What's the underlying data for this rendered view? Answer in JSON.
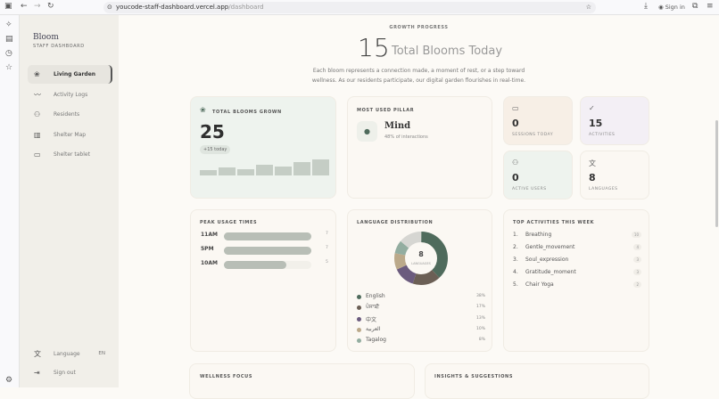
{
  "browser": {
    "url_host": "youcode-staff-dashboard.vercel.app",
    "url_path": "/dashboard",
    "sign_in": "Sign in"
  },
  "sidebar": {
    "brand": "Bloom",
    "subtitle": "STAFF DASHBOARD",
    "items": [
      {
        "label": "Living Garden",
        "icon": "flower-icon"
      },
      {
        "label": "Activity Logs",
        "icon": "activity-icon"
      },
      {
        "label": "Residents",
        "icon": "users-icon"
      },
      {
        "label": "Shelter Map",
        "icon": "map-icon"
      },
      {
        "label": "Shelter tablet",
        "icon": "tablet-icon"
      }
    ],
    "language_label": "Language",
    "language_value": "EN",
    "sign_out": "Sign out"
  },
  "hero": {
    "eyebrow": "GROWTH PROGRESS",
    "count": "15",
    "title": "Total Blooms Today",
    "description_1": "Each bloom represents a connection made, a moment of rest, or a step toward",
    "description_2": "wellness. As our residents participate, our digital garden flourishes in real-time."
  },
  "total_blooms": {
    "label": "TOTAL BLOOMS GROWN",
    "value": "25",
    "delta": "+15 today",
    "bars": [
      2,
      3,
      2.5,
      4,
      3.5,
      5,
      6
    ]
  },
  "pillar": {
    "label": "MOST USED PILLAR",
    "name": "Mind",
    "sub": "48% of interactions"
  },
  "stats": [
    {
      "value": "0",
      "label": "SESSIONS TODAY",
      "color": "#f7efe6"
    },
    {
      "value": "15",
      "label": "ACTIVITIES",
      "color": "#f3eff5"
    },
    {
      "value": "0",
      "label": "ACTIVE USERS",
      "color": "#eef3ee"
    },
    {
      "value": "8",
      "label": "LANGUAGES",
      "color": "#fbf8f3"
    }
  ],
  "peak": {
    "label": "PEAK USAGE TIMES",
    "max": 7,
    "rows": [
      {
        "time": "11AM",
        "value": 7
      },
      {
        "time": "5PM",
        "value": 7
      },
      {
        "time": "10AM",
        "value": 5
      }
    ]
  },
  "languages": {
    "label": "LANGUAGE DISTRIBUTION",
    "center_value": "8",
    "center_label": "LANGUAGES",
    "items": [
      {
        "name": "English",
        "pct": 38,
        "color": "#4f6b5c"
      },
      {
        "name": "ਪੰਜਾਬੀ",
        "pct": 17,
        "color": "#6b5f55"
      },
      {
        "name": "中文",
        "pct": 13,
        "color": "#6b5b7e"
      },
      {
        "name": "العربية",
        "pct": 10,
        "color": "#bba98a"
      },
      {
        "name": "Tagalog",
        "pct": 8,
        "color": "#93ada0"
      }
    ],
    "other_color": "#d6d6d2"
  },
  "top_activities": {
    "label": "TOP ACTIVITIES THIS WEEK",
    "items": [
      {
        "rank": "1.",
        "name": "Breathing",
        "count": "10"
      },
      {
        "rank": "2.",
        "name": "Gentle_movement",
        "count": "4"
      },
      {
        "rank": "3.",
        "name": "Soul_expression",
        "count": "3"
      },
      {
        "rank": "4.",
        "name": "Gratitude_moment",
        "count": "3"
      },
      {
        "rank": "5.",
        "name": "Chair Yoga",
        "count": "2"
      }
    ]
  },
  "bottom": {
    "wellness": "WELLNESS FOCUS",
    "insights": "INSIGHTS & SUGGESTIONS"
  }
}
